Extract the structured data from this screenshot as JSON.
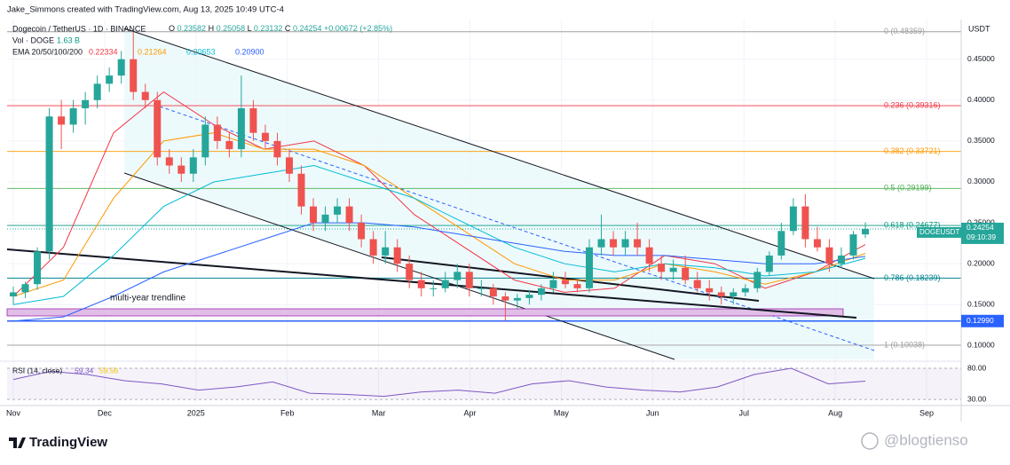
{
  "chart_data": {
    "type": "candlestick",
    "header": "Jake_Simmons created with TradingView.com, Aug 13, 2025 10:49 UTC-4",
    "title": "Dogecoin / TetherUS · 1D · BINANCE",
    "ohlc_legend": [
      {
        "name": "O",
        "value": 0.23582
      },
      {
        "name": "H",
        "value": 0.25058
      },
      {
        "name": "L",
        "value": 0.23132
      },
      {
        "name": "C",
        "value": 0.24254
      }
    ],
    "change": {
      "value": 0.00672,
      "label": "+0.00672"
    },
    "change_pct": {
      "value": 2.85,
      "label": "(+2.85%)"
    },
    "volume_legend": {
      "name": "Vol · DOGE",
      "value": {
        "value": 1.63,
        "label": "1.63 B"
      }
    },
    "ema_legend": "EMA 20/50/100/200",
    "currency": "USDT",
    "symbol": "DOGEUSDT",
    "last_price": 0.24254,
    "countdown": "09:10:39",
    "annotation": "multi-year trendline",
    "brand": "TradingView",
    "watermark": "@blogtienso",
    "ylim": [
      0.083,
      0.492
    ],
    "yticks": [
      {
        "value": 0.1,
        "label": "0.10000"
      },
      {
        "value": 0.15,
        "label": "0.15000"
      },
      {
        "value": 0.2,
        "label": "0.20000"
      },
      {
        "value": 0.25,
        "label": "0.25000"
      },
      {
        "value": 0.3,
        "label": "0.30000"
      },
      {
        "value": 0.35,
        "label": "0.35000"
      },
      {
        "value": 0.4,
        "label": "0.40000"
      },
      {
        "value": 0.45,
        "label": "0.45000"
      }
    ],
    "categories": [
      "Nov",
      "Dec",
      "2025",
      "Feb",
      "Mar",
      "Apr",
      "May",
      "Jun",
      "Jul",
      "Aug",
      "Sep"
    ],
    "horizontal_line": {
      "value": 0.1299,
      "label": "0.12990",
      "color": "#2962ff"
    },
    "fib_levels": [
      {
        "level": 0,
        "value": 0.48359,
        "label": "0 (0.48359)",
        "color": "#9e9e9e"
      },
      {
        "level": 0.236,
        "value": 0.39316,
        "label": "0.236 (0.39316)",
        "color": "#f23645"
      },
      {
        "level": 0.382,
        "value": 0.33721,
        "label": "0.382 (0.33721)",
        "color": "#ff9800"
      },
      {
        "level": 0.5,
        "value": 0.29199,
        "label": "0.5 (0.29199)",
        "color": "#4caf50"
      },
      {
        "level": 0.618,
        "value": 0.24677,
        "label": "0.618 (0.24677)",
        "color": "#089981"
      },
      {
        "level": 0.786,
        "value": 0.18239,
        "label": "0.786 (0.18239)",
        "color": "#00838f"
      },
      {
        "level": 1,
        "value": 0.10038,
        "label": "1 (0.10038)",
        "color": "#9e9e9e"
      }
    ],
    "up_color": "#26a69a",
    "down_color": "#ef5350",
    "open": [
      0.16,
      0.165,
      0.175,
      0.215,
      0.38,
      0.37,
      0.39,
      0.4,
      0.42,
      0.43,
      0.45,
      0.41,
      0.4,
      0.33,
      0.32,
      0.31,
      0.33,
      0.37,
      0.35,
      0.34,
      0.39,
      0.36,
      0.35,
      0.33,
      0.31,
      0.27,
      0.25,
      0.26,
      0.27,
      0.25,
      0.23,
      0.21,
      0.22,
      0.2,
      0.18,
      0.17,
      0.17,
      0.18,
      0.19,
      0.17,
      0.17,
      0.16,
      0.155,
      0.158,
      0.162,
      0.17,
      0.18,
      0.175,
      0.17,
      0.22,
      0.23,
      0.22,
      0.23,
      0.22,
      0.2,
      0.19,
      0.195,
      0.18,
      0.17,
      0.165,
      0.16,
      0.165,
      0.17,
      0.19,
      0.21,
      0.24,
      0.27,
      0.23,
      0.22,
      0.2,
      0.21,
      0.23582
    ],
    "high": [
      0.172,
      0.178,
      0.22,
      0.39,
      0.4,
      0.4,
      0.41,
      0.43,
      0.44,
      0.46,
      0.484,
      0.42,
      0.41,
      0.34,
      0.33,
      0.34,
      0.38,
      0.38,
      0.36,
      0.43,
      0.4,
      0.37,
      0.36,
      0.34,
      0.32,
      0.28,
      0.27,
      0.28,
      0.28,
      0.26,
      0.24,
      0.24,
      0.23,
      0.21,
      0.19,
      0.18,
      0.19,
      0.2,
      0.2,
      0.18,
      0.175,
      0.165,
      0.163,
      0.168,
      0.175,
      0.19,
      0.19,
      0.18,
      0.23,
      0.26,
      0.24,
      0.24,
      0.25,
      0.23,
      0.21,
      0.205,
      0.21,
      0.19,
      0.18,
      0.172,
      0.17,
      0.175,
      0.195,
      0.215,
      0.25,
      0.28,
      0.285,
      0.245,
      0.23,
      0.22,
      0.24,
      0.25058
    ],
    "low": [
      0.15,
      0.158,
      0.168,
      0.205,
      0.34,
      0.36,
      0.37,
      0.39,
      0.41,
      0.42,
      0.4,
      0.39,
      0.32,
      0.31,
      0.3,
      0.3,
      0.32,
      0.34,
      0.33,
      0.33,
      0.35,
      0.34,
      0.32,
      0.3,
      0.26,
      0.24,
      0.24,
      0.25,
      0.24,
      0.22,
      0.2,
      0.2,
      0.19,
      0.17,
      0.16,
      0.16,
      0.165,
      0.17,
      0.16,
      0.16,
      0.15,
      0.13,
      0.145,
      0.15,
      0.155,
      0.165,
      0.17,
      0.165,
      0.165,
      0.21,
      0.21,
      0.21,
      0.21,
      0.19,
      0.18,
      0.18,
      0.175,
      0.165,
      0.155,
      0.15,
      0.15,
      0.16,
      0.165,
      0.185,
      0.205,
      0.235,
      0.22,
      0.215,
      0.19,
      0.195,
      0.205,
      0.23132
    ],
    "close": [
      0.165,
      0.175,
      0.215,
      0.38,
      0.37,
      0.39,
      0.4,
      0.42,
      0.43,
      0.45,
      0.41,
      0.4,
      0.33,
      0.32,
      0.31,
      0.33,
      0.37,
      0.35,
      0.34,
      0.39,
      0.36,
      0.35,
      0.33,
      0.31,
      0.27,
      0.25,
      0.26,
      0.27,
      0.25,
      0.23,
      0.21,
      0.22,
      0.2,
      0.18,
      0.17,
      0.17,
      0.18,
      0.19,
      0.17,
      0.17,
      0.16,
      0.155,
      0.158,
      0.162,
      0.17,
      0.18,
      0.175,
      0.17,
      0.22,
      0.23,
      0.22,
      0.23,
      0.22,
      0.2,
      0.19,
      0.195,
      0.18,
      0.17,
      0.165,
      0.16,
      0.165,
      0.17,
      0.19,
      0.21,
      0.24,
      0.27,
      0.23,
      0.22,
      0.2,
      0.21,
      0.23582,
      0.24254
    ],
    "ema": [
      {
        "name": {
          "value": 0.22334,
          "label": "0.22334"
        },
        "color": "#f23645",
        "values": [
          0.16,
          0.22,
          0.36,
          0.41,
          0.37,
          0.34,
          0.35,
          0.32,
          0.26,
          0.22,
          0.18,
          0.165,
          0.17,
          0.21,
          0.2,
          0.17,
          0.19,
          0.22334
        ]
      },
      {
        "name": {
          "value": 0.21264,
          "label": "0.21264"
        },
        "color": "#ff9800",
        "values": [
          0.16,
          0.18,
          0.28,
          0.35,
          0.36,
          0.34,
          0.34,
          0.32,
          0.28,
          0.24,
          0.2,
          0.18,
          0.18,
          0.2,
          0.19,
          0.175,
          0.19,
          0.21264
        ]
      },
      {
        "name": {
          "value": 0.20653,
          "label": "0.20653"
        },
        "color": "#00bcd4",
        "values": [
          0.15,
          0.16,
          0.21,
          0.27,
          0.3,
          0.31,
          0.32,
          0.3,
          0.28,
          0.25,
          0.22,
          0.2,
          0.19,
          0.2,
          0.195,
          0.185,
          0.19,
          0.20653
        ]
      },
      {
        "name": {
          "value": 0.209,
          "label": "0.20900"
        },
        "color": "#2962ff",
        "values": [
          0.13,
          0.135,
          0.16,
          0.19,
          0.21,
          0.23,
          0.25,
          0.25,
          0.245,
          0.235,
          0.225,
          0.215,
          0.21,
          0.21,
          0.205,
          0.2,
          0.2,
          0.209
        ]
      }
    ],
    "rsi": {
      "name": "RSI (14, close)",
      "legend_values": [
        59.34,
        59.56
      ],
      "color": "#7e57c2",
      "ylim": [
        23,
        90
      ],
      "yticks": [
        {
          "value": 80,
          "label": "80.00"
        },
        {
          "value": 30,
          "label": "30.00"
        }
      ],
      "values": [
        62,
        75,
        70,
        60,
        55,
        45,
        50,
        58,
        40,
        38,
        35,
        42,
        45,
        40,
        55,
        60,
        50,
        45,
        42,
        50,
        70,
        80,
        55,
        59.34
      ]
    }
  }
}
